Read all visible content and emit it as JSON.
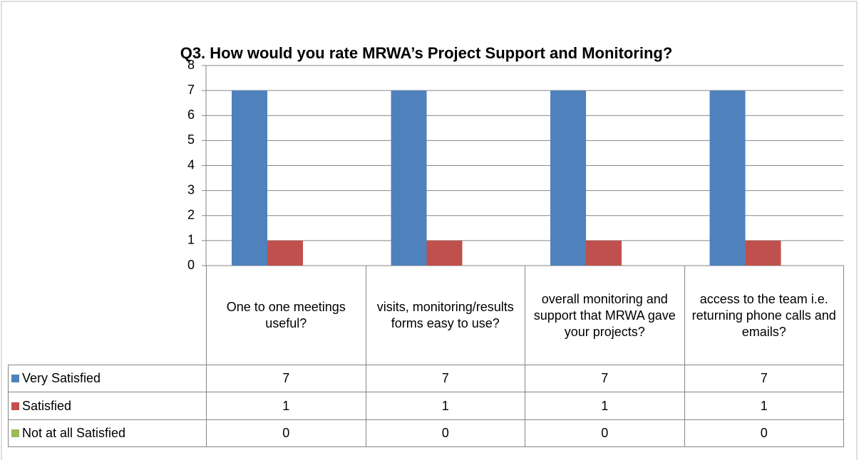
{
  "chart_data": {
    "type": "bar",
    "title": "Q3. How would you rate MRWA’s Project Support and Monitoring?",
    "categories": [
      "One to one meetings useful?",
      "visits, monitoring/results forms easy to use?",
      "overall monitoring and support that MRWA gave your projects?",
      "access to the team i.e. returning phone calls and emails?"
    ],
    "series": [
      {
        "name": "Very Satisfied",
        "color": "#4f81bd",
        "values": [
          7,
          7,
          7,
          7
        ]
      },
      {
        "name": "Satisfied",
        "color": "#c0504d",
        "values": [
          1,
          1,
          1,
          1
        ]
      },
      {
        "name": "Not at all Satisfied",
        "color": "#9bbb59",
        "values": [
          0,
          0,
          0,
          0
        ]
      }
    ],
    "ylim": [
      0,
      8
    ],
    "yticks": [
      0,
      1,
      2,
      3,
      4,
      5,
      6,
      7,
      8
    ],
    "grid": true,
    "data_table": true
  }
}
